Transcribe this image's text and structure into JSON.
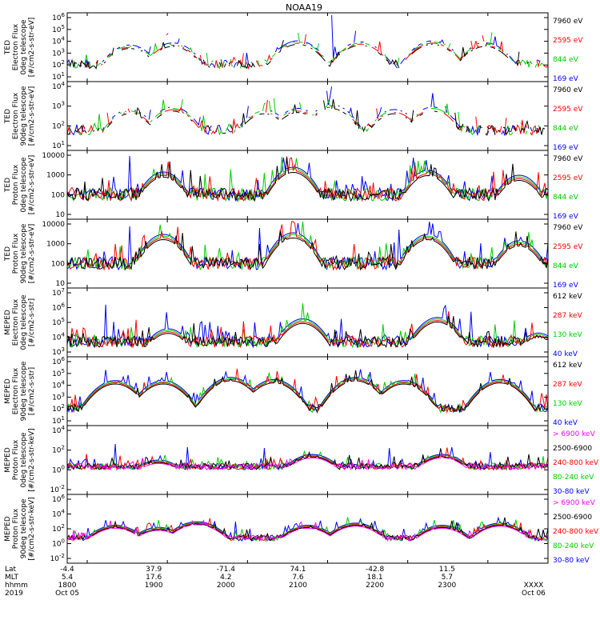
{
  "chart_data": {
    "type": "line",
    "title": "NOAA19",
    "time_axis": {
      "row_labels": [
        "Lat",
        "MLT",
        "hhmm",
        "2019"
      ],
      "lat": [
        "-4.4",
        "37.9",
        "-71.4",
        "74.1",
        "-42.8",
        "11.5"
      ],
      "mlt": [
        "5.4",
        "17.6",
        "4.2",
        "7.6",
        "18.1",
        "5.7"
      ],
      "hhmm": [
        "1800",
        "1900",
        "2000",
        "2100",
        "2200",
        "2300",
        "XXXX"
      ],
      "date_labels": [
        "Oct 05",
        "Oct 06"
      ]
    },
    "panels": [
      {
        "id": "ted-e-0",
        "ylabel": [
          "TED",
          "Electron Flux",
          "0deg telescope",
          "[#/cm2-s-str-eV]"
        ],
        "yticks": [
          "10^1",
          "10^2",
          "10^3",
          "10^4",
          "10^5",
          "10^6"
        ],
        "ylog": [
          0,
          6
        ],
        "legend": [
          {
            "label": "7960 eV",
            "color": "#000000"
          },
          {
            "label": "2595 eV",
            "color": "#ff0000"
          },
          {
            "label": "844 eV",
            "color": "#00cc00"
          },
          {
            "label": "169 eV",
            "color": "#0000ff"
          }
        ],
        "humps": [
          [
            0.13,
            3.2
          ],
          [
            0.22,
            3.4
          ],
          [
            0.48,
            3.6
          ],
          [
            0.61,
            3.5
          ],
          [
            0.76,
            3.6
          ],
          [
            0.87,
            3.4
          ]
        ],
        "spikes": [
          [
            0.55,
            6.3
          ]
        ],
        "base": 1.0,
        "sparse": true
      },
      {
        "id": "ted-e-90",
        "ylabel": [
          "TED",
          "Electron Flux",
          "90deg telescope",
          "[#/cm2-s-str-eV]"
        ],
        "yticks": [
          "10^1",
          "10^2",
          "10^3",
          "10^4"
        ],
        "ylog": [
          0,
          5
        ],
        "legend": [
          {
            "label": "7960 eV",
            "color": "#000000"
          },
          {
            "label": "2595 eV",
            "color": "#ff0000"
          },
          {
            "label": "844 eV",
            "color": "#00cc00"
          },
          {
            "label": "169 eV",
            "color": "#0000ff"
          }
        ],
        "humps": [
          [
            0.13,
            3.0
          ],
          [
            0.22,
            3.2
          ],
          [
            0.41,
            3.0
          ],
          [
            0.48,
            3.1
          ],
          [
            0.55,
            3.4
          ],
          [
            0.68,
            3.0
          ],
          [
            0.76,
            3.2
          ]
        ],
        "spikes": [
          [
            0.55,
            4.8
          ]
        ],
        "base": 1.0,
        "sparse": true
      },
      {
        "id": "ted-p-0",
        "ylabel": [
          "TED",
          "Proton Flux",
          "0deg telescope",
          "[#/cm2-s-str-eV]"
        ],
        "yticks": [
          "10",
          "100",
          "1000",
          "10000"
        ],
        "ylog": [
          0,
          4
        ],
        "legend": [
          {
            "label": "7960 eV",
            "color": "#000000"
          },
          {
            "label": "2595 eV",
            "color": "#ff0000"
          },
          {
            "label": "844 eV",
            "color": "#00cc00"
          },
          {
            "label": "169 eV",
            "color": "#0000ff"
          }
        ],
        "humps": [
          [
            0.2,
            2.8
          ],
          [
            0.47,
            3.1
          ],
          [
            0.75,
            2.9
          ],
          [
            0.94,
            2.6
          ]
        ],
        "spikes": [
          [
            0.13,
            3.8
          ],
          [
            0.45,
            3.7
          ],
          [
            0.72,
            3.7
          ]
        ],
        "base": 1.0,
        "sparse": false
      },
      {
        "id": "ted-p-90",
        "ylabel": [
          "TED",
          "Proton Flux",
          "90deg telescope",
          "[#/cm2-s-str-eV]"
        ],
        "yticks": [
          "10",
          "100",
          "1000",
          "10000"
        ],
        "ylog": [
          0,
          4
        ],
        "legend": [
          {
            "label": "7960 eV",
            "color": "#000000"
          },
          {
            "label": "2595 eV",
            "color": "#ff0000"
          },
          {
            "label": "844 eV",
            "color": "#00cc00"
          },
          {
            "label": "169 eV",
            "color": "#0000ff"
          }
        ],
        "humps": [
          [
            0.2,
            3.2
          ],
          [
            0.47,
            3.3
          ],
          [
            0.75,
            3.2
          ],
          [
            0.94,
            2.8
          ]
        ],
        "spikes": [
          [
            0.13,
            3.7
          ],
          [
            0.4,
            3.6
          ],
          [
            0.69,
            3.5
          ]
        ],
        "base": 1.0,
        "sparse": false
      },
      {
        "id": "meped-e-0",
        "ylabel": [
          "MEPED",
          "Electron Flux",
          "0deg telescope",
          "[#/cm2-s-str]"
        ],
        "yticks": [
          "10^3",
          "10^4",
          "10^5",
          "10^6",
          "10^7"
        ],
        "ylog": [
          2.5,
          7
        ],
        "legend": [
          {
            "label": "612 keV",
            "color": "#000000"
          },
          {
            "label": "287 keV",
            "color": "#ff0000"
          },
          {
            "label": "130 keV",
            "color": "#00cc00"
          },
          {
            "label": "40 keV",
            "color": "#0000ff"
          }
        ],
        "humps": [
          [
            0.21,
            4.3
          ],
          [
            0.49,
            5.0
          ],
          [
            0.77,
            5.1
          ],
          [
            0.98,
            4.0
          ]
        ],
        "spikes": [
          [
            0.08,
            6.0
          ],
          [
            0.28,
            4.8
          ],
          [
            0.57,
            5.0
          ],
          [
            0.84,
            5.5
          ]
        ],
        "base": 3.0,
        "sparse": false
      },
      {
        "id": "meped-e-90",
        "ylabel": [
          "MEPED",
          "Electron Flux",
          "90deg telescope",
          "[#/cm2-s-str]"
        ],
        "yticks": [
          "10^1",
          "10^2",
          "10^3",
          "10^4",
          "10^5",
          "10^6"
        ],
        "ylog": [
          0.5,
          6.5
        ],
        "legend": [
          {
            "label": "612 keV",
            "color": "#000000"
          },
          {
            "label": "287 keV",
            "color": "#ff0000"
          },
          {
            "label": "130 keV",
            "color": "#00cc00"
          },
          {
            "label": "40 keV",
            "color": "#0000ff"
          }
        ],
        "humps": [
          [
            0.1,
            4.5
          ],
          [
            0.2,
            4.5
          ],
          [
            0.34,
            4.8
          ],
          [
            0.43,
            4.6
          ],
          [
            0.6,
            4.8
          ],
          [
            0.7,
            4.5
          ],
          [
            0.9,
            4.6
          ]
        ],
        "spikes": [
          [
            0.08,
            5.5
          ],
          [
            0.33,
            5.3
          ],
          [
            0.63,
            5.3
          ],
          [
            0.88,
            5.3
          ]
        ],
        "base": 1.5,
        "sparse": false
      },
      {
        "id": "meped-p-0",
        "ylabel": [
          "MEPED",
          "Proton Flux",
          "0deg telescope",
          "[#/cm2-s-str-keV]"
        ],
        "yticks": [
          "10^-2",
          "10^0",
          "10^2",
          "10^4"
        ],
        "ylog": [
          -2.5,
          5.5
        ],
        "legend": [
          {
            "label": "> 6900 keV",
            "color": "#ff00ff"
          },
          {
            "label": "2500-6900",
            "color": "#000000"
          },
          {
            "label": "240-800 keV",
            "color": "#ff0000"
          },
          {
            "label": "80-240 keV",
            "color": "#00cc00"
          },
          {
            "label": "30-80 keV",
            "color": "#0000ff"
          }
        ],
        "humps": [
          [
            0.19,
            1.5
          ],
          [
            0.51,
            2.2
          ],
          [
            0.78,
            2.2
          ],
          [
            0.97,
            0.8
          ]
        ],
        "spikes": [
          [
            0.1,
            3.5
          ],
          [
            0.25,
            3.0
          ],
          [
            0.41,
            3.0
          ],
          [
            0.67,
            3.0
          ],
          [
            0.88,
            2.5
          ]
        ],
        "base": 0.3,
        "sparse": false
      },
      {
        "id": "meped-p-90",
        "ylabel": [
          "MEPED",
          "Proton Flux",
          "90deg telescope",
          "[#/cm2-s-str-keV]"
        ],
        "yticks": [
          "10^-2",
          "10^0",
          "10^2",
          "10^4",
          "10^6"
        ],
        "ylog": [
          -2.5,
          6.5
        ],
        "legend": [
          {
            "label": "> 6900 keV",
            "color": "#ff00ff"
          },
          {
            "label": "2500-6900",
            "color": "#000000"
          },
          {
            "label": "240-800 keV",
            "color": "#ff0000"
          },
          {
            "label": "80-240 keV",
            "color": "#00cc00"
          },
          {
            "label": "30-80 keV",
            "color": "#0000ff"
          }
        ],
        "humps": [
          [
            0.1,
            2.5
          ],
          [
            0.19,
            2.2
          ],
          [
            0.27,
            3.0
          ],
          [
            0.5,
            2.5
          ],
          [
            0.6,
            2.8
          ],
          [
            0.78,
            2.5
          ],
          [
            0.9,
            2.8
          ]
        ],
        "spikes": [
          [
            0.08,
            3.2
          ],
          [
            0.35,
            3.0
          ],
          [
            0.64,
            3.1
          ]
        ],
        "base": 0.3,
        "sparse": false
      }
    ]
  }
}
